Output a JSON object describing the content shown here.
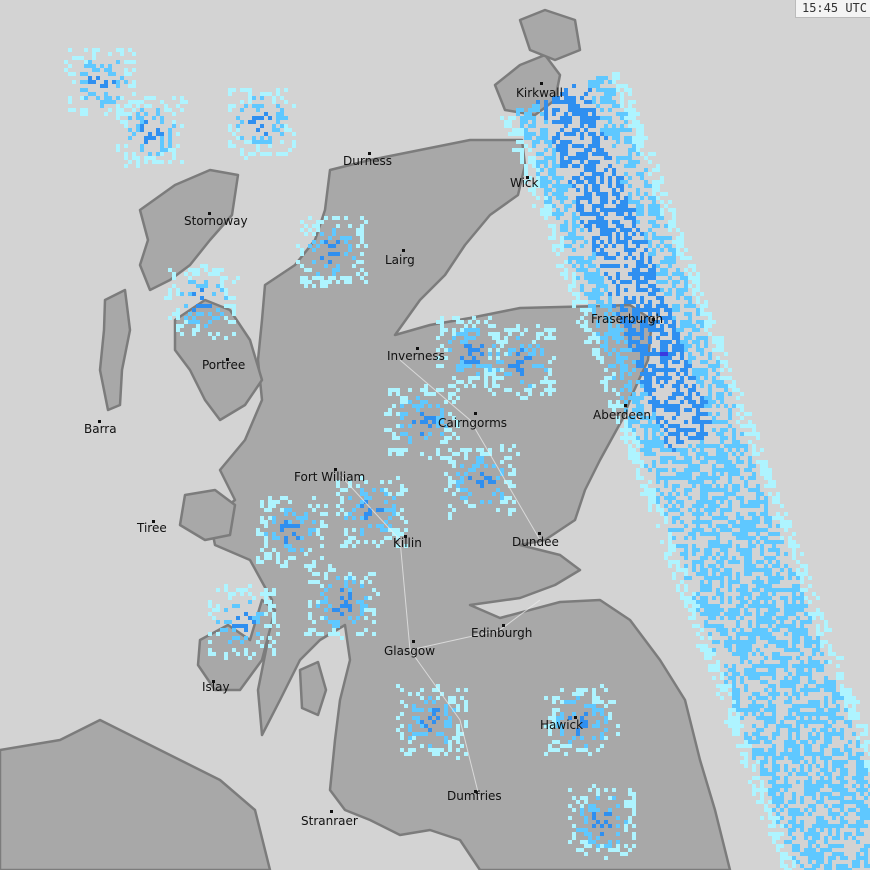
{
  "timestamp": "15:45 UTC",
  "colors": {
    "sea": "#d3d3d3",
    "land": "#a8a8a8",
    "coast": "#7c7c7c",
    "rain_light": "#aef4ff",
    "rain_mid": "#5fc8ff",
    "rain_heavy": "#2f8ff0",
    "rain_intense": "#3a3ae0"
  },
  "places": [
    {
      "name": "Kirkwall"
    },
    {
      "name": "Durness"
    },
    {
      "name": "Wick"
    },
    {
      "name": "Stornoway"
    },
    {
      "name": "Lairg"
    },
    {
      "name": "Fraserburgh"
    },
    {
      "name": "Portree"
    },
    {
      "name": "Inverness"
    },
    {
      "name": "Barra"
    },
    {
      "name": "Cairngorms"
    },
    {
      "name": "Aberdeen"
    },
    {
      "name": "Fort William"
    },
    {
      "name": "Tiree"
    },
    {
      "name": "Killin"
    },
    {
      "name": "Dundee"
    },
    {
      "name": "Edinburgh"
    },
    {
      "name": "Glasgow"
    },
    {
      "name": "Islay"
    },
    {
      "name": "Hawick"
    },
    {
      "name": "Dumfries"
    },
    {
      "name": "Stranraer"
    }
  ]
}
